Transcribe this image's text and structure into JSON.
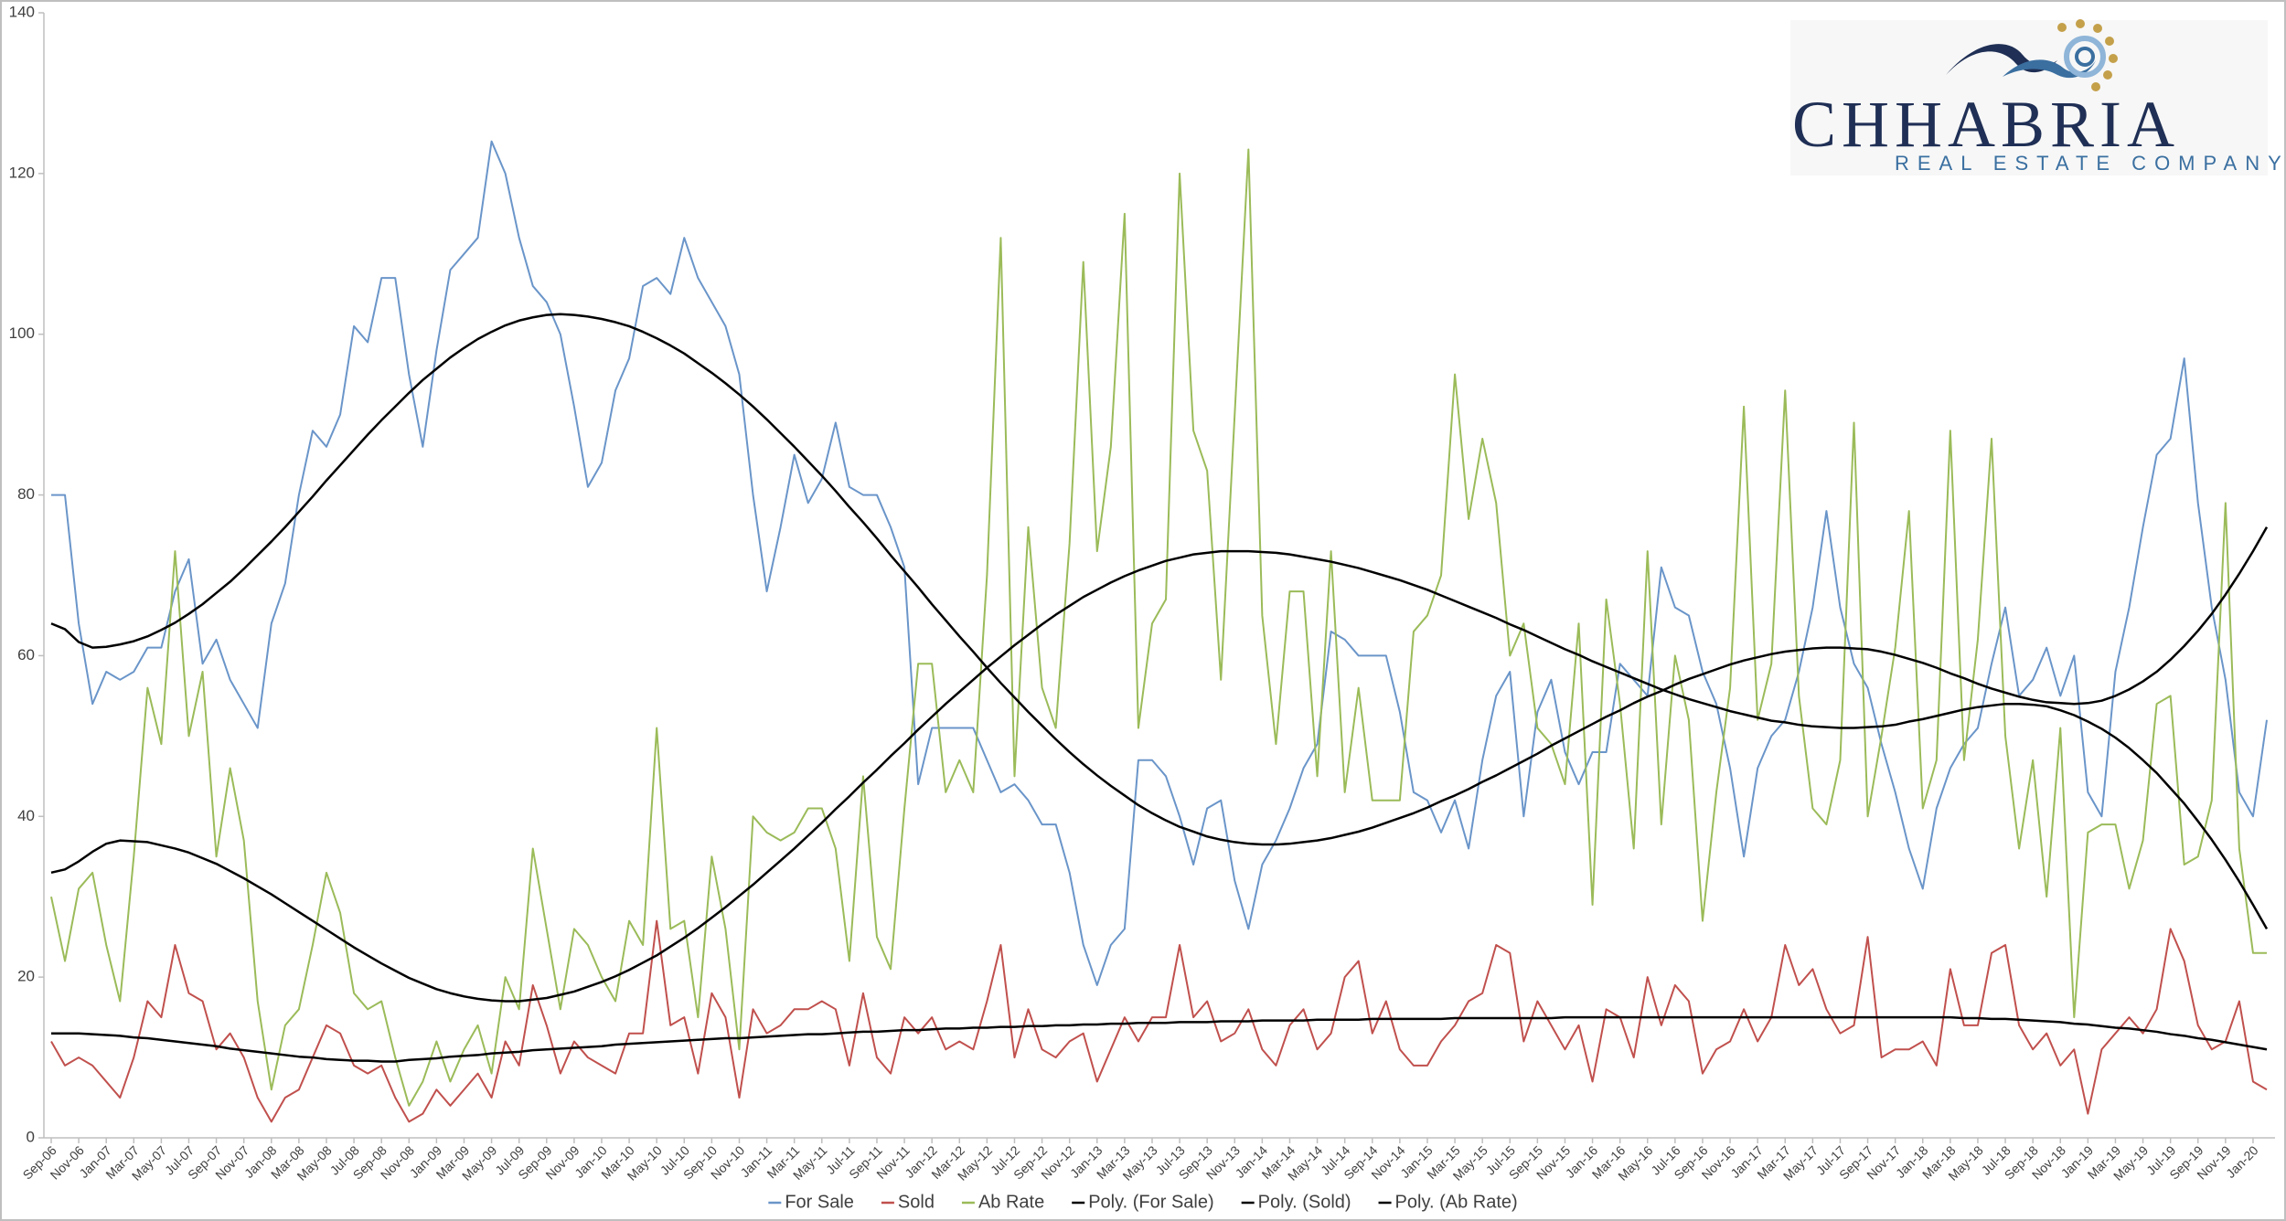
{
  "logo": {
    "name": "CHHABRIA",
    "tagline": "REAL ESTATE COMPANY"
  },
  "chart_data": {
    "type": "line",
    "categories": [
      "Sep-06",
      null,
      "Nov-06",
      null,
      "Jan-07",
      null,
      "Mar-07",
      null,
      "May-07",
      null,
      "Jul-07",
      null,
      "Sep-07",
      null,
      "Nov-07",
      null,
      "Jan-08",
      null,
      "Mar-08",
      null,
      "May-08",
      null,
      "Jul-08",
      null,
      "Sep-08",
      null,
      "Nov-08",
      null,
      "Jan-09",
      null,
      "Mar-09",
      null,
      "May-09",
      null,
      "Jul-09",
      null,
      "Sep-09",
      null,
      "Nov-09",
      null,
      "Jan-10",
      null,
      "Mar-10",
      null,
      "May-10",
      null,
      "Jul-10",
      null,
      "Sep-10",
      null,
      "Nov-10",
      null,
      "Jan-11",
      null,
      "Mar-11",
      null,
      "May-11",
      null,
      "Jul-11",
      null,
      "Sep-11",
      null,
      "Nov-11",
      null,
      "Jan-12",
      null,
      "Mar-12",
      null,
      "May-12",
      null,
      "Jul-12",
      null,
      "Sep-12",
      null,
      "Nov-12",
      null,
      "Jan-13",
      null,
      "Mar-13",
      null,
      "May-13",
      null,
      "Jul-13",
      null,
      "Sep-13",
      null,
      "Nov-13",
      null,
      "Jan-14",
      null,
      "Mar-14",
      null,
      "May-14",
      null,
      "Jul-14",
      null,
      "Sep-14",
      null,
      "Nov-14",
      null,
      "Jan-15",
      null,
      "Mar-15",
      null,
      "May-15",
      null,
      "Jul-15",
      null,
      "Sep-15",
      null,
      "Nov-15",
      null,
      "Jan-16",
      null,
      "Mar-16",
      null,
      "May-16",
      null,
      "Jul-16",
      null,
      "Sep-16",
      null,
      "Nov-16",
      null,
      "Jan-17",
      null,
      "Mar-17",
      null,
      "May-17",
      null,
      "Jul-17",
      null,
      "Sep-17",
      null,
      "Nov-17",
      null,
      "Jan-18",
      null,
      "Mar-18",
      null,
      "May-18",
      null,
      "Jul-18",
      null,
      "Sep-18",
      null,
      "Nov-18",
      null,
      "Jan-19",
      null,
      "Mar-19",
      null,
      "May-19",
      null,
      "Jul-19",
      null,
      "Sep-19",
      null,
      "Nov-19",
      null,
      "Jan-20",
      null
    ],
    "series": [
      {
        "name": "For Sale",
        "color": "#6a95c9",
        "width": 2,
        "values": [
          80,
          80,
          64,
          54,
          58,
          57,
          58,
          61,
          61,
          68,
          72,
          59,
          62,
          57,
          54,
          51,
          64,
          69,
          80,
          88,
          86,
          90,
          101,
          99,
          107,
          107,
          95,
          86,
          98,
          108,
          110,
          112,
          124,
          120,
          112,
          106,
          104,
          100,
          91,
          81,
          84,
          93,
          97,
          106,
          107,
          105,
          112,
          107,
          104,
          101,
          95,
          80,
          68,
          76,
          85,
          79,
          82,
          89,
          81,
          80,
          80,
          76,
          71,
          44,
          51,
          51,
          51,
          51,
          47,
          43,
          44,
          42,
          39,
          39,
          33,
          24,
          19,
          24,
          26,
          47,
          47,
          45,
          40,
          34,
          41,
          42,
          32,
          26,
          34,
          37,
          41,
          46,
          49,
          63,
          62,
          60,
          60,
          60,
          53,
          43,
          42,
          38,
          42,
          36,
          47,
          55,
          58,
          40,
          53,
          57,
          48,
          44,
          48,
          48,
          59,
          57,
          55,
          71,
          66,
          65,
          58,
          54,
          46,
          35,
          46,
          50,
          52,
          58,
          66,
          78,
          66,
          59,
          56,
          49,
          43,
          36,
          31,
          41,
          46,
          49,
          51,
          59,
          66,
          55,
          57,
          61,
          55,
          60,
          43,
          40,
          58,
          66,
          76,
          85,
          87,
          97,
          79,
          66,
          57,
          43,
          40,
          52
        ]
      },
      {
        "name": "Sold",
        "color": "#c0504d",
        "width": 2,
        "values": [
          12,
          9,
          10,
          9,
          7,
          5,
          10,
          17,
          15,
          24,
          18,
          17,
          11,
          13,
          10,
          5,
          2,
          5,
          6,
          10,
          14,
          13,
          9,
          8,
          9,
          5,
          2,
          3,
          6,
          4,
          6,
          8,
          5,
          12,
          9,
          19,
          14,
          8,
          12,
          10,
          9,
          8,
          13,
          13,
          27,
          14,
          15,
          8,
          18,
          15,
          5,
          16,
          13,
          14,
          16,
          16,
          17,
          16,
          9,
          18,
          10,
          8,
          15,
          13,
          15,
          11,
          12,
          11,
          17,
          24,
          10,
          16,
          11,
          10,
          12,
          13,
          7,
          11,
          15,
          12,
          15,
          15,
          24,
          15,
          17,
          12,
          13,
          16,
          11,
          9,
          14,
          16,
          11,
          13,
          20,
          22,
          13,
          17,
          11,
          9,
          9,
          12,
          14,
          17,
          18,
          24,
          23,
          12,
          17,
          14,
          11,
          14,
          7,
          16,
          15,
          10,
          20,
          14,
          19,
          17,
          8,
          11,
          12,
          16,
          12,
          15,
          24,
          19,
          21,
          16,
          13,
          14,
          25,
          10,
          11,
          11,
          12,
          9,
          21,
          14,
          14,
          23,
          24,
          14,
          11,
          13,
          9,
          11,
          3,
          11,
          13,
          15,
          13,
          16,
          26,
          22,
          14,
          11,
          12,
          17,
          7,
          6
        ]
      },
      {
        "name": "Ab Rate",
        "color": "#9bbb59",
        "width": 2,
        "values": [
          30,
          22,
          31,
          33,
          24,
          17,
          35,
          56,
          49,
          73,
          50,
          58,
          35,
          46,
          37,
          17,
          6,
          14,
          16,
          24,
          33,
          28,
          18,
          16,
          17,
          10,
          4,
          7,
          12,
          7,
          11,
          14,
          8,
          20,
          16,
          36,
          26,
          16,
          26,
          24,
          20,
          17,
          27,
          24,
          51,
          26,
          27,
          15,
          35,
          26,
          11,
          40,
          38,
          37,
          38,
          41,
          41,
          36,
          22,
          45,
          25,
          21,
          41,
          59,
          59,
          43,
          47,
          43,
          70,
          112,
          45,
          76,
          56,
          51,
          74,
          109,
          73,
          86,
          115,
          51,
          64,
          67,
          120,
          88,
          83,
          57,
          90,
          123,
          65,
          49,
          68,
          68,
          45,
          73,
          43,
          56,
          42,
          42,
          42,
          63,
          65,
          70,
          95,
          77,
          87,
          79,
          60,
          64,
          51,
          49,
          44,
          64,
          29,
          67,
          54,
          36,
          73,
          39,
          60,
          52,
          27,
          43,
          56,
          91,
          52,
          59,
          93,
          55,
          41,
          39,
          47,
          89,
          40,
          50,
          61,
          78,
          41,
          47,
          88,
          47,
          62,
          87,
          50,
          36,
          47,
          30,
          51,
          15,
          38,
          39,
          39,
          31,
          37,
          54,
          55,
          34,
          35,
          42,
          79,
          36,
          23,
          23
        ]
      },
      {
        "name": "Poly. (For Sale)",
        "color": "#000000",
        "width": 2.5,
        "values": [
          64,
          63.3,
          61.7,
          61,
          61.1,
          61.4,
          61.8,
          62.4,
          63.2,
          64.1,
          65.2,
          66.4,
          67.8,
          69.2,
          70.8,
          72.5,
          74.2,
          76,
          77.9,
          79.8,
          81.8,
          83.7,
          85.6,
          87.5,
          89.3,
          91,
          92.7,
          94.3,
          95.7,
          97.1,
          98.3,
          99.4,
          100.3,
          101.1,
          101.7,
          102.1,
          102.4,
          102.5,
          102.4,
          102.2,
          101.9,
          101.5,
          101,
          100.3,
          99.5,
          98.6,
          97.6,
          96.4,
          95.2,
          93.9,
          92.5,
          91,
          89.4,
          87.7,
          86,
          84.2,
          82.4,
          80.5,
          78.5,
          76.6,
          74.6,
          72.5,
          70.5,
          68.5,
          66.4,
          64.4,
          62.4,
          60.5,
          58.5,
          56.6,
          54.8,
          53,
          51.3,
          49.6,
          48,
          46.5,
          45.1,
          43.8,
          42.6,
          41.4,
          40.4,
          39.5,
          38.7,
          38.1,
          37.5,
          37.1,
          36.8,
          36.6,
          36.5,
          36.5,
          36.6,
          36.8,
          37,
          37.3,
          37.7,
          38.1,
          38.6,
          39.2,
          39.8,
          40.4,
          41.1,
          41.9,
          42.6,
          43.4,
          44.3,
          45.1,
          46,
          46.9,
          47.8,
          48.8,
          49.7,
          50.6,
          51.5,
          52.4,
          53.2,
          54.1,
          54.9,
          55.6,
          56.4,
          57.1,
          57.7,
          58.3,
          58.9,
          59.4,
          59.8,
          60.2,
          60.5,
          60.7,
          60.9,
          61,
          61,
          60.9,
          60.8,
          60.5,
          60.1,
          59.6,
          59.1,
          58.5,
          57.8,
          57.2,
          56.5,
          55.9,
          55.4,
          54.9,
          54.5,
          54.2,
          54.1,
          54,
          54.1,
          54.4,
          55,
          55.8,
          56.8,
          58,
          59.5,
          61.2,
          63.1,
          65.2,
          67.6,
          70.2,
          73,
          76
        ]
      },
      {
        "name": "Poly. (Sold)",
        "color": "#000000",
        "width": 2.5,
        "values": [
          13,
          13,
          13,
          12.9,
          12.8,
          12.7,
          12.5,
          12.4,
          12.2,
          12,
          11.8,
          11.6,
          11.4,
          11.1,
          10.9,
          10.7,
          10.5,
          10.3,
          10.1,
          10,
          9.8,
          9.7,
          9.6,
          9.6,
          9.5,
          9.5,
          9.7,
          9.8,
          9.9,
          10.1,
          10.2,
          10.3,
          10.5,
          10.6,
          10.7,
          10.9,
          11,
          11.1,
          11.2,
          11.3,
          11.4,
          11.6,
          11.7,
          11.8,
          11.9,
          12,
          12.1,
          12.2,
          12.3,
          12.4,
          12.4,
          12.5,
          12.6,
          12.7,
          12.8,
          12.9,
          12.9,
          13,
          13.1,
          13.2,
          13.2,
          13.3,
          13.4,
          13.4,
          13.5,
          13.6,
          13.6,
          13.7,
          13.7,
          13.8,
          13.8,
          13.9,
          13.9,
          14,
          14,
          14.1,
          14.1,
          14.2,
          14.2,
          14.3,
          14.3,
          14.3,
          14.4,
          14.4,
          14.4,
          14.5,
          14.5,
          14.5,
          14.6,
          14.6,
          14.6,
          14.6,
          14.7,
          14.7,
          14.7,
          14.7,
          14.8,
          14.8,
          14.8,
          14.8,
          14.8,
          14.8,
          14.9,
          14.9,
          14.9,
          14.9,
          14.9,
          14.9,
          14.9,
          14.9,
          15,
          15,
          15,
          15,
          15,
          15,
          15,
          15,
          15,
          15,
          15,
          15,
          15,
          15,
          15,
          15,
          15,
          15,
          15,
          15,
          15,
          15,
          15,
          15,
          15,
          15,
          15,
          15,
          15,
          14.9,
          14.9,
          14.8,
          14.8,
          14.7,
          14.6,
          14.5,
          14.4,
          14.2,
          14.1,
          13.9,
          13.7,
          13.6,
          13.4,
          13.2,
          12.9,
          12.7,
          12.4,
          12.2,
          11.9,
          11.6,
          11.3,
          11
        ]
      },
      {
        "name": "Poly. (Ab Rate)",
        "color": "#000000",
        "width": 2.5,
        "values": [
          33,
          33.4,
          34.4,
          35.6,
          36.6,
          37,
          36.9,
          36.8,
          36.4,
          36,
          35.5,
          34.8,
          34.1,
          33.2,
          32.3,
          31.3,
          30.3,
          29.2,
          28.1,
          27,
          25.9,
          24.8,
          23.7,
          22.7,
          21.7,
          20.8,
          19.9,
          19.2,
          18.5,
          18,
          17.6,
          17.3,
          17.1,
          17,
          17,
          17.2,
          17.4,
          17.8,
          18.2,
          18.8,
          19.4,
          20.1,
          20.9,
          21.8,
          22.7,
          23.8,
          24.9,
          26.1,
          27.4,
          28.7,
          30.1,
          31.5,
          33,
          34.5,
          36,
          37.6,
          39.2,
          40.9,
          42.5,
          44.2,
          45.8,
          47.5,
          49.1,
          50.8,
          52.4,
          54,
          55.5,
          57,
          58.5,
          59.9,
          61.3,
          62.6,
          63.9,
          65.1,
          66.2,
          67.3,
          68.2,
          69.1,
          69.9,
          70.6,
          71.2,
          71.8,
          72.2,
          72.6,
          72.8,
          73,
          73,
          73,
          72.9,
          72.8,
          72.6,
          72.3,
          72,
          71.7,
          71.3,
          70.9,
          70.4,
          69.9,
          69.4,
          68.8,
          68.2,
          67.5,
          66.8,
          66.1,
          65.4,
          64.7,
          63.9,
          63.2,
          62.4,
          61.6,
          60.8,
          60.1,
          59.3,
          58.6,
          57.9,
          57.2,
          56.5,
          55.8,
          55.2,
          54.6,
          54.1,
          53.6,
          53.1,
          52.7,
          52.3,
          51.9,
          51.7,
          51.4,
          51.2,
          51.1,
          51,
          51,
          51.1,
          51.2,
          51.4,
          51.8,
          52.1,
          52.5,
          52.9,
          53.3,
          53.6,
          53.8,
          54,
          54,
          53.9,
          53.7,
          53.2,
          52.6,
          51.8,
          50.9,
          49.8,
          48.5,
          47,
          45.4,
          43.5,
          41.6,
          39.4,
          37.1,
          34.6,
          31.9,
          29,
          26
        ]
      }
    ],
    "ylim": [
      0,
      140
    ],
    "yticks": [
      0,
      20,
      40,
      60,
      80,
      100,
      120,
      140
    ],
    "grid": false,
    "legend": "bottom"
  }
}
